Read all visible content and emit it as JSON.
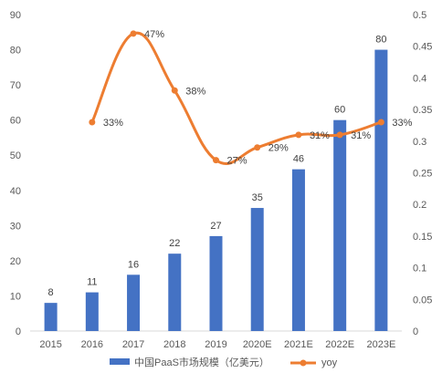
{
  "chart_data": {
    "type": "bar+line",
    "categories": [
      "2015",
      "2016",
      "2017",
      "2018",
      "2019",
      "2020E",
      "2021E",
      "2022E",
      "2023E"
    ],
    "series": [
      {
        "name": "中国PaaS市场规模（亿美元）",
        "type": "bar",
        "axis": "left",
        "values": [
          8,
          11,
          16,
          22,
          27,
          35,
          46,
          60,
          80
        ],
        "labels": [
          "8",
          "11",
          "16",
          "22",
          "27",
          "35",
          "46",
          "60",
          "80"
        ],
        "color": "#4472C4"
      },
      {
        "name": "yoy",
        "type": "line",
        "axis": "right",
        "values": [
          null,
          0.33,
          0.47,
          0.38,
          0.27,
          0.29,
          0.31,
          0.31,
          0.33
        ],
        "labels": [
          "",
          "33%",
          "47%",
          "38%",
          "27%",
          "29%",
          "31%",
          "31%",
          "33%"
        ],
        "color": "#ED7D31",
        "smooth": true
      }
    ],
    "y_left": {
      "min": 0,
      "max": 90,
      "step": 10,
      "ticks": [
        "0",
        "10",
        "20",
        "30",
        "40",
        "50",
        "60",
        "70",
        "80",
        "90"
      ]
    },
    "y_right": {
      "min": 0,
      "max": 0.5,
      "step": 0.05,
      "ticks": [
        "0",
        "0.05",
        "0.1",
        "0.15",
        "0.2",
        "0.25",
        "0.3",
        "0.35",
        "0.4",
        "0.45",
        "0.5"
      ]
    },
    "grid": false,
    "legend_position": "bottom"
  }
}
